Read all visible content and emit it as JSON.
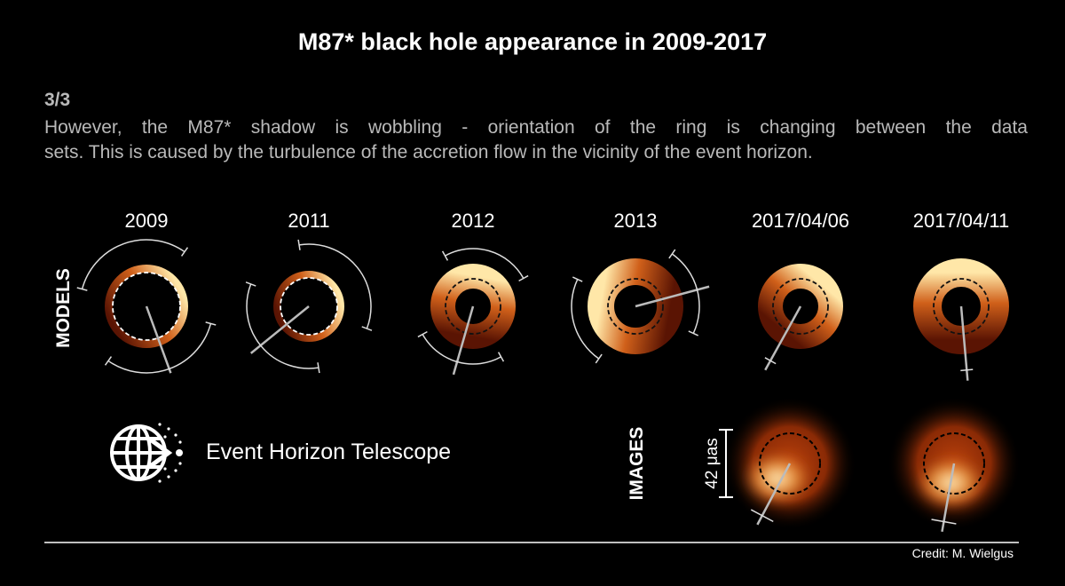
{
  "header": {
    "title": "M87* black hole appearance in 2009-2017",
    "step": "3/3",
    "description": [
      "However, the M87* shadow is wobbling - orientation of the ring is changing between the data",
      "sets. This is caused by the turbulence of the accretion flow in the vicinity of the event horizon."
    ]
  },
  "models": {
    "label": "MODELS",
    "years": [
      "2009",
      "2011",
      "2012",
      "2013",
      "2017/04/06",
      "2017/04/11"
    ]
  },
  "images": {
    "label": "IMAGES",
    "scale": "42 μas"
  },
  "logo": {
    "text": "Event Horizon Telescope"
  },
  "footer": {
    "credit": "Credit: M. Wielgus"
  }
}
